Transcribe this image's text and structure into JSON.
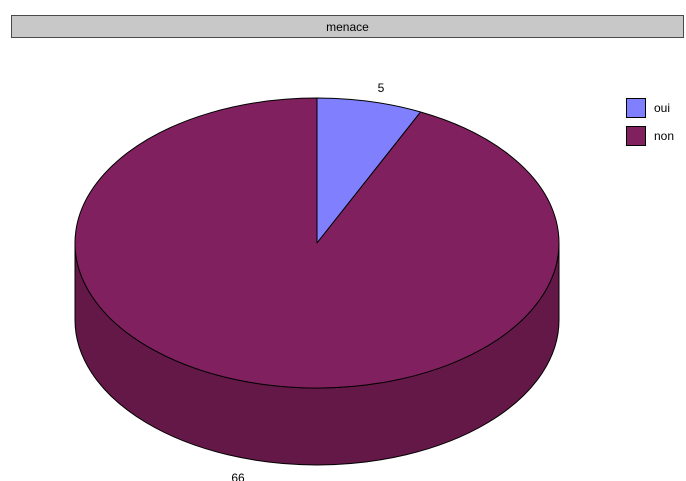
{
  "chart_data": {
    "type": "pie",
    "title": "menace",
    "categories": [
      "oui",
      "non"
    ],
    "values": [
      5,
      66
    ],
    "data_labels": [
      "5",
      "66"
    ],
    "colors": [
      "#8080ff",
      "#80205f"
    ],
    "side_colors": [
      "#6060c0",
      "#631847"
    ],
    "three_d": true,
    "legend": {
      "placement": "right",
      "items": [
        {
          "label": "oui",
          "color": "#8080ff"
        },
        {
          "label": "non",
          "color": "#80205f"
        }
      ]
    }
  }
}
